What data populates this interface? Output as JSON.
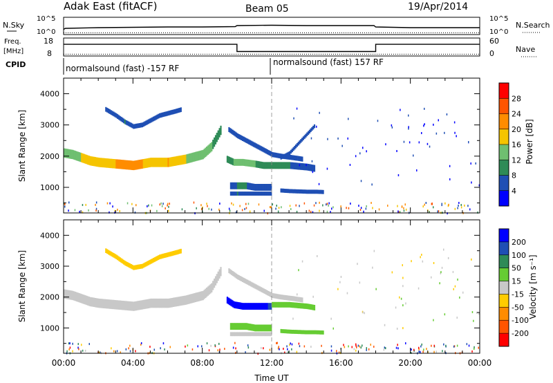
{
  "header": {
    "station": "Adak East (fitACF)",
    "beam": "Beam 05",
    "date": "19/Apr/2014"
  },
  "noise_panel": {
    "left_label": "N.Sky",
    "right_label": "N.Search",
    "left_ticks": [
      "10^5",
      "10^0"
    ],
    "right_ticks": [
      "10^5",
      "10^0"
    ],
    "series": [
      {
        "name": "N.Sky",
        "style": "solid",
        "x_hours": [
          0,
          0.1,
          2,
          4,
          6,
          8,
          9.9,
          10,
          12,
          14,
          17.9,
          18,
          20,
          24
        ],
        "values": [
          1.5,
          1.8,
          2.0,
          2.1,
          2.2,
          2.2,
          2.3,
          2.6,
          2.7,
          2.6,
          2.6,
          2.2,
          2.0,
          2.0
        ]
      },
      {
        "name": "N.Search",
        "style": "dotted",
        "x_hours": [
          0,
          24
        ],
        "values": [
          0.5,
          0.5
        ]
      }
    ]
  },
  "freq_panel": {
    "left_label_top": "Freq.",
    "left_label_bottom": "[MHz]",
    "right_label": "Nave",
    "left_ticks": [
      "18",
      "8"
    ],
    "right_ticks": [
      "60",
      "0"
    ],
    "series": [
      {
        "name": "Freq.",
        "style": "solid",
        "x_hours": [
          0,
          10,
          10,
          18,
          18,
          24
        ],
        "values": [
          14.5,
          14.5,
          10.5,
          10.5,
          14.5,
          14.5
        ]
      },
      {
        "name": "Nave",
        "style": "dotted",
        "x_hours": [
          0,
          24
        ],
        "values": [
          9,
          9
        ]
      }
    ]
  },
  "cpid_panel": {
    "label": "CPID",
    "segments": [
      {
        "start_hour": 0,
        "text": "normalsound (fast) -157 RF"
      },
      {
        "start_hour": 12,
        "text": "normalsound (fast) 157 RF"
      }
    ]
  },
  "power_colorbar": {
    "label": "Power [dB]",
    "ticks": [
      "4",
      "8",
      "12",
      "16",
      "20",
      "24",
      "28"
    ],
    "colors": [
      "#0000ff",
      "#1f4fb4",
      "#2e8b57",
      "#6fbf70",
      "#f5c400",
      "#ff8c00",
      "#ff5500",
      "#ff0000"
    ]
  },
  "velocity_colorbar": {
    "label": "Velocity [m s⁻¹]",
    "ticks": [
      "200",
      "100",
      "50",
      "15",
      "-15",
      "-50",
      "-100",
      "-200"
    ],
    "colors": [
      "#0000ff",
      "#1f4fb4",
      "#2e8b57",
      "#66cc33",
      "#c8c8c8",
      "#ffcc00",
      "#ff8c00",
      "#ff5500",
      "#ff0000"
    ]
  },
  "chart_data": [
    {
      "type": "heatmap",
      "title": "",
      "ylabel": "Slant Range [km]",
      "xlabel": "",
      "xlim": [
        0,
        24
      ],
      "ylim": [
        180,
        4500
      ],
      "y_ticks": [
        "1000",
        "2000",
        "3000",
        "4000"
      ],
      "colorbar": "Power [dB]",
      "echo_regions": [
        {
          "x_hours": [
            0,
            0.5,
            1,
            1.5,
            2,
            3,
            4,
            5,
            6,
            7,
            8,
            8.5,
            9.1
          ],
          "range_km": [
            2100,
            2050,
            1950,
            1850,
            1800,
            1750,
            1700,
            1800,
            1800,
            1900,
            2050,
            2300,
            2900
          ],
          "power_db": [
            12,
            14,
            16,
            18,
            18,
            20,
            22,
            18,
            20,
            16,
            14,
            12,
            8
          ],
          "thickness_km": 300
        },
        {
          "x_hours": [
            2.4,
            3,
            3.5,
            4,
            4.5,
            5.5,
            6.5,
            6.8
          ],
          "range_km": [
            3500,
            3300,
            3100,
            2950,
            3000,
            3300,
            3450,
            3500
          ],
          "power_db": [
            6,
            6,
            8,
            6,
            6,
            6,
            6,
            6
          ],
          "thickness_km": 150
        },
        {
          "x_hours": [
            9.4,
            9.8,
            10.3,
            11,
            11.5,
            12,
            13,
            14,
            14.5
          ],
          "range_km": [
            1900,
            1800,
            1800,
            1750,
            1700,
            1700,
            1700,
            1650,
            1600
          ],
          "power_db": [
            8,
            12,
            14,
            12,
            10,
            10,
            8,
            6,
            6
          ],
          "thickness_km": 220
        },
        {
          "x_hours": [
            9.5,
            10,
            10.5,
            11,
            11.5,
            12,
            12.5,
            13.2,
            13.8
          ],
          "range_km": [
            2850,
            2650,
            2500,
            2350,
            2200,
            2050,
            2000,
            1950,
            1900
          ],
          "power_db": [
            6,
            6,
            6,
            6,
            6,
            6,
            6,
            6,
            6
          ],
          "thickness_km": 160
        },
        {
          "x_hours": [
            9.6,
            10,
            10.5,
            11,
            11.5,
            12
          ],
          "range_km": [
            1050,
            1050,
            1050,
            1000,
            1000,
            1000
          ],
          "power_db": [
            6,
            8,
            8,
            6,
            6,
            6
          ],
          "thickness_km": 220
        },
        {
          "x_hours": [
            9.6,
            10,
            10.5,
            11,
            11.5,
            12
          ],
          "range_km": [
            800,
            800,
            800,
            800,
            800,
            800
          ],
          "power_db": [
            6,
            8,
            6,
            6,
            6,
            6
          ],
          "thickness_km": 130
        },
        {
          "x_hours": [
            12.5,
            13,
            13.5,
            14,
            14.5,
            15
          ],
          "range_km": [
            900,
            880,
            870,
            860,
            860,
            850
          ],
          "power_db": [
            6,
            6,
            6,
            6,
            6,
            6
          ],
          "thickness_km": 130
        },
        {
          "x_hours": [
            12.5,
            13,
            13.5,
            14,
            14.5
          ],
          "range_km": [
            1950,
            2100,
            2400,
            2700,
            3000
          ],
          "power_db": [
            4,
            4,
            4,
            4,
            4
          ],
          "thickness_km": 120
        }
      ]
    },
    {
      "type": "heatmap",
      "title": "",
      "ylabel": "Slant Range [km]",
      "xlabel": "Time UT",
      "xlim": [
        0,
        24
      ],
      "ylim": [
        180,
        4500
      ],
      "y_ticks": [
        "1000",
        "2000",
        "3000",
        "4000"
      ],
      "x_ticks": [
        "00:00",
        "04:00",
        "08:00",
        "12:00",
        "16:00",
        "20:00",
        "00:00"
      ],
      "colorbar": "Velocity [m s⁻¹]",
      "echo_regions": [
        {
          "x_hours": [
            0,
            0.5,
            1,
            1.5,
            2,
            3,
            4,
            5,
            6,
            7,
            8,
            8.5,
            9.1
          ],
          "range_km": [
            2100,
            2050,
            1950,
            1850,
            1800,
            1750,
            1700,
            1800,
            1800,
            1900,
            2050,
            2300,
            2900
          ],
          "velocity": [
            0,
            0,
            0,
            0,
            0,
            0,
            0,
            0,
            0,
            0,
            0,
            0,
            0
          ],
          "thickness_km": 300
        },
        {
          "x_hours": [
            2.4,
            3,
            3.5,
            4,
            4.5,
            5.5,
            6.5,
            6.8
          ],
          "range_km": [
            3500,
            3300,
            3100,
            2950,
            3000,
            3300,
            3450,
            3500
          ],
          "velocity": [
            -30,
            -30,
            -30,
            -30,
            -30,
            -30,
            -30,
            -30
          ],
          "thickness_km": 150
        },
        {
          "x_hours": [
            9.4,
            9.8,
            10.3,
            11,
            11.5,
            12
          ],
          "range_km": [
            1900,
            1750,
            1700,
            1700,
            1700,
            1700
          ],
          "velocity": [
            200,
            200,
            200,
            200,
            200,
            100
          ],
          "thickness_km": 220
        },
        {
          "x_hours": [
            12,
            12.5,
            13,
            14,
            14.5
          ],
          "range_km": [
            1750,
            1750,
            1750,
            1700,
            1650
          ],
          "velocity": [
            30,
            30,
            30,
            30,
            30
          ],
          "thickness_km": 180
        },
        {
          "x_hours": [
            9.5,
            10,
            10.5,
            11,
            11.5,
            12,
            12.5,
            13.2,
            13.8
          ],
          "range_km": [
            2850,
            2650,
            2500,
            2350,
            2200,
            2050,
            2000,
            1950,
            1900
          ],
          "velocity": [
            0,
            0,
            0,
            0,
            0,
            0,
            0,
            0,
            0
          ],
          "thickness_km": 160
        },
        {
          "x_hours": [
            9.6,
            10,
            10.5,
            11,
            11.5,
            12
          ],
          "range_km": [
            1050,
            1050,
            1050,
            1000,
            1000,
            1000
          ],
          "velocity": [
            30,
            30,
            30,
            30,
            30,
            30
          ],
          "thickness_km": 220
        },
        {
          "x_hours": [
            9.6,
            10,
            10.5,
            11,
            11.5,
            12
          ],
          "range_km": [
            800,
            800,
            800,
            800,
            800,
            800
          ],
          "velocity": [
            0,
            0,
            0,
            0,
            0,
            0
          ],
          "thickness_km": 130
        },
        {
          "x_hours": [
            12.5,
            13,
            13.5,
            14,
            14.5,
            15
          ],
          "range_km": [
            900,
            880,
            870,
            860,
            860,
            850
          ],
          "velocity": [
            30,
            30,
            30,
            30,
            30,
            30
          ],
          "thickness_km": 130
        }
      ]
    }
  ]
}
